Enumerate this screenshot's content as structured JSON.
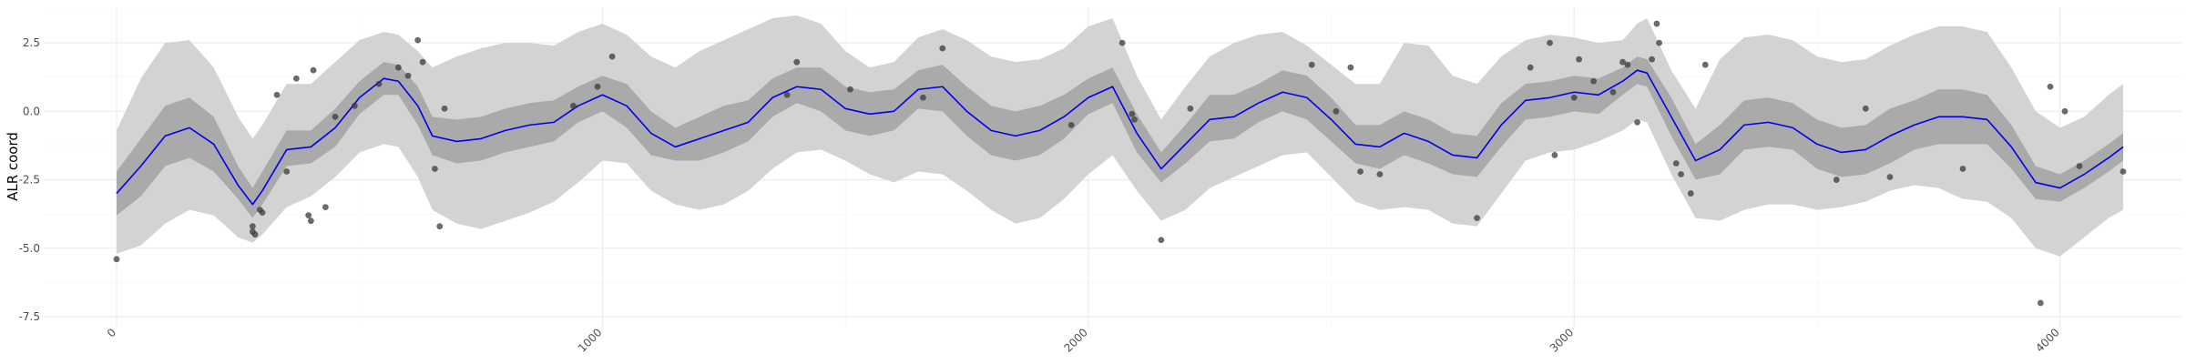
{
  "chart_data": {
    "type": "line",
    "title": "",
    "xlabel": "",
    "ylabel": "ALR coord",
    "xlim": [
      -150,
      4250
    ],
    "ylim": [
      -7.9,
      3.8
    ],
    "x_ticks": [
      0,
      1000,
      2000,
      3000,
      4000
    ],
    "x_tick_labels": [
      "0",
      "1000",
      "2000",
      "3000",
      "4000"
    ],
    "y_ticks": [
      -7.5,
      -5.0,
      -2.5,
      0.0,
      2.5
    ],
    "y_tick_labels": [
      "-7.5",
      "-5.0",
      "-2.5",
      "0.0",
      "2.5"
    ],
    "grid": true,
    "colors": {
      "mean_line": "#0000ee",
      "inner_band": "#aaaaaa",
      "outer_band": "#d3d3d3",
      "points": "#3a3a3a"
    },
    "series": [
      {
        "type": "line",
        "x": [
          0,
          50,
          100,
          150,
          200,
          250,
          280,
          300,
          350,
          400,
          450,
          500,
          550,
          580,
          620,
          650,
          700,
          750,
          800,
          850,
          900,
          950,
          1000,
          1050,
          1100,
          1150,
          1200,
          1250,
          1300,
          1350,
          1400,
          1450,
          1500,
          1550,
          1600,
          1650,
          1700,
          1750,
          1800,
          1850,
          1900,
          1950,
          2000,
          2050,
          2100,
          2150,
          2200,
          2250,
          2300,
          2350,
          2400,
          2450,
          2500,
          2550,
          2600,
          2650,
          2700,
          2750,
          2800,
          2850,
          2900,
          2950,
          3000,
          3050,
          3100,
          3130,
          3150,
          3200,
          3250,
          3300,
          3350,
          3400,
          3450,
          3500,
          3550,
          3600,
          3650,
          3700,
          3750,
          3800,
          3850,
          3900,
          3950,
          4000,
          4050,
          4100,
          4130
        ],
        "y": [
          -3.0,
          -2.0,
          -0.9,
          -0.6,
          -1.2,
          -2.7,
          -3.4,
          -2.9,
          -1.4,
          -1.3,
          -0.6,
          0.5,
          1.2,
          1.1,
          0.2,
          -0.9,
          -1.1,
          -1.0,
          -0.7,
          -0.5,
          -0.4,
          0.2,
          0.6,
          0.2,
          -0.8,
          -1.3,
          -1.0,
          -0.7,
          -0.4,
          0.5,
          0.9,
          0.8,
          0.1,
          -0.1,
          0.0,
          0.8,
          0.9,
          0.0,
          -0.7,
          -0.9,
          -0.7,
          -0.2,
          0.5,
          0.9,
          -0.8,
          -2.1,
          -1.2,
          -0.3,
          -0.2,
          0.3,
          0.7,
          0.5,
          -0.3,
          -1.2,
          -1.3,
          -0.8,
          -1.1,
          -1.6,
          -1.7,
          -0.5,
          0.4,
          0.5,
          0.7,
          0.6,
          1.1,
          1.5,
          1.4,
          -0.2,
          -1.8,
          -1.4,
          -0.5,
          -0.4,
          -0.6,
          -1.2,
          -1.5,
          -1.4,
          -0.9,
          -0.5,
          -0.2,
          -0.2,
          -0.3,
          -1.3,
          -2.6,
          -2.8,
          -2.3,
          -1.7,
          -1.3
        ]
      },
      {
        "type": "band",
        "name": "inner",
        "x": [
          0,
          50,
          100,
          150,
          200,
          250,
          280,
          300,
          350,
          400,
          450,
          500,
          550,
          580,
          620,
          650,
          700,
          750,
          800,
          850,
          900,
          950,
          1000,
          1050,
          1100,
          1150,
          1200,
          1250,
          1300,
          1350,
          1400,
          1450,
          1500,
          1550,
          1600,
          1650,
          1700,
          1750,
          1800,
          1850,
          1900,
          1950,
          2000,
          2050,
          2100,
          2150,
          2200,
          2250,
          2300,
          2350,
          2400,
          2450,
          2500,
          2550,
          2600,
          2650,
          2700,
          2750,
          2800,
          2850,
          2900,
          2950,
          3000,
          3050,
          3100,
          3130,
          3150,
          3200,
          3250,
          3300,
          3350,
          3400,
          3450,
          3500,
          3550,
          3600,
          3650,
          3700,
          3750,
          3800,
          3850,
          3900,
          3950,
          4000,
          4050,
          4100,
          4130
        ],
        "low": [
          -3.8,
          -3.1,
          -2.0,
          -1.7,
          -2.2,
          -3.2,
          -3.9,
          -3.4,
          -2.0,
          -1.9,
          -1.3,
          -0.1,
          0.6,
          0.6,
          -0.5,
          -1.6,
          -1.9,
          -1.8,
          -1.5,
          -1.3,
          -1.1,
          -0.4,
          0.0,
          -0.6,
          -1.6,
          -1.8,
          -1.8,
          -1.5,
          -1.1,
          -0.2,
          0.3,
          0.0,
          -0.7,
          -0.9,
          -0.7,
          0.1,
          0.0,
          -0.9,
          -1.6,
          -1.8,
          -1.6,
          -1.0,
          -0.1,
          0.3,
          -1.5,
          -2.6,
          -1.9,
          -1.1,
          -1.0,
          -0.4,
          0.0,
          -0.3,
          -1.1,
          -1.9,
          -2.1,
          -1.6,
          -1.9,
          -2.3,
          -2.4,
          -1.3,
          -0.3,
          -0.2,
          0.0,
          -0.1,
          0.6,
          1.0,
          0.9,
          -0.9,
          -2.5,
          -2.3,
          -1.4,
          -1.3,
          -1.4,
          -2.1,
          -2.4,
          -2.3,
          -1.9,
          -1.4,
          -1.2,
          -1.2,
          -1.2,
          -2.1,
          -3.2,
          -3.3,
          -2.8,
          -2.2,
          -1.8
        ],
        "high": [
          -2.2,
          -1.0,
          0.2,
          0.5,
          -0.2,
          -2.0,
          -2.8,
          -2.2,
          -0.7,
          -0.7,
          0.1,
          1.1,
          1.8,
          1.7,
          0.9,
          -0.2,
          -0.3,
          -0.2,
          0.1,
          0.3,
          0.4,
          0.9,
          1.3,
          1.0,
          0.0,
          -0.6,
          -0.2,
          0.2,
          0.4,
          1.2,
          1.6,
          1.6,
          0.9,
          0.7,
          0.8,
          1.5,
          1.7,
          0.9,
          0.2,
          0.0,
          0.2,
          0.6,
          1.2,
          1.6,
          -0.1,
          -1.5,
          -0.5,
          0.6,
          0.6,
          1.0,
          1.5,
          1.3,
          0.5,
          -0.5,
          -0.5,
          0.0,
          -0.3,
          -0.8,
          -0.9,
          0.3,
          1.0,
          1.1,
          1.3,
          1.2,
          1.6,
          2.0,
          1.9,
          0.5,
          -1.2,
          -0.5,
          0.4,
          0.5,
          0.3,
          -0.3,
          -0.6,
          -0.5,
          0.1,
          0.4,
          0.8,
          0.8,
          0.6,
          -0.5,
          -2.0,
          -2.3,
          -1.8,
          -1.2,
          -0.8
        ]
      },
      {
        "type": "band",
        "name": "outer",
        "x": [
          0,
          50,
          100,
          150,
          200,
          250,
          280,
          300,
          350,
          400,
          450,
          500,
          550,
          580,
          620,
          650,
          700,
          750,
          800,
          850,
          900,
          950,
          1000,
          1050,
          1100,
          1150,
          1200,
          1250,
          1300,
          1350,
          1400,
          1450,
          1500,
          1550,
          1600,
          1650,
          1700,
          1750,
          1800,
          1850,
          1900,
          1950,
          2000,
          2050,
          2100,
          2150,
          2200,
          2250,
          2300,
          2350,
          2400,
          2450,
          2500,
          2550,
          2600,
          2650,
          2700,
          2750,
          2800,
          2850,
          2900,
          2950,
          3000,
          3050,
          3100,
          3130,
          3150,
          3200,
          3250,
          3300,
          3350,
          3400,
          3450,
          3500,
          3550,
          3600,
          3650,
          3700,
          3750,
          3800,
          3850,
          3900,
          3950,
          4000,
          4050,
          4100,
          4130
        ],
        "low": [
          -5.2,
          -4.9,
          -4.1,
          -3.6,
          -3.8,
          -4.6,
          -4.8,
          -4.5,
          -3.5,
          -3.1,
          -2.4,
          -1.5,
          -1.2,
          -1.3,
          -2.4,
          -3.6,
          -4.1,
          -4.3,
          -4.0,
          -3.7,
          -3.3,
          -2.6,
          -1.8,
          -1.9,
          -2.9,
          -3.4,
          -3.6,
          -3.4,
          -2.9,
          -2.1,
          -1.5,
          -1.4,
          -1.8,
          -2.3,
          -2.6,
          -2.2,
          -2.3,
          -2.9,
          -3.6,
          -4.1,
          -3.9,
          -3.2,
          -2.3,
          -1.6,
          -2.9,
          -4.0,
          -3.6,
          -2.8,
          -2.4,
          -2.0,
          -1.6,
          -1.5,
          -2.4,
          -3.3,
          -3.6,
          -3.5,
          -3.6,
          -4.1,
          -4.2,
          -3.0,
          -1.8,
          -1.5,
          -1.4,
          -1.1,
          -0.7,
          -0.3,
          -0.4,
          -2.3,
          -3.9,
          -4.0,
          -3.6,
          -3.4,
          -3.4,
          -3.6,
          -3.5,
          -3.3,
          -2.9,
          -2.7,
          -2.8,
          -3.2,
          -3.3,
          -3.9,
          -5.0,
          -5.3,
          -4.6,
          -3.9,
          -3.6
        ],
        "high": [
          -0.7,
          1.2,
          2.5,
          2.6,
          1.6,
          -0.2,
          -1.0,
          -0.5,
          1.0,
          1.0,
          1.8,
          2.6,
          2.9,
          2.8,
          2.2,
          1.6,
          2.0,
          2.3,
          2.5,
          2.5,
          2.4,
          2.9,
          3.2,
          2.8,
          2.0,
          1.6,
          2.2,
          2.6,
          3.0,
          3.4,
          3.5,
          3.2,
          2.2,
          1.6,
          1.8,
          2.7,
          3.0,
          2.6,
          2.0,
          1.8,
          1.9,
          2.3,
          3.1,
          3.4,
          1.3,
          -0.3,
          0.9,
          2.0,
          2.5,
          2.8,
          2.9,
          2.4,
          1.7,
          1.0,
          1.0,
          2.5,
          2.4,
          1.3,
          1.0,
          2.0,
          2.6,
          2.8,
          2.7,
          2.5,
          2.6,
          3.2,
          3.4,
          1.5,
          0.1,
          1.9,
          2.7,
          2.8,
          2.6,
          2.0,
          1.8,
          1.9,
          2.4,
          2.8,
          3.1,
          3.1,
          2.9,
          1.6,
          0.0,
          -0.6,
          -0.2,
          0.6,
          1.0
        ]
      },
      {
        "type": "scatter",
        "x": [
          0,
          280,
          280,
          285,
          295,
          300,
          330,
          350,
          370,
          395,
          400,
          405,
          430,
          450,
          490,
          540,
          580,
          600,
          620,
          630,
          655,
          665,
          675,
          940,
          990,
          1020,
          1380,
          1400,
          1510,
          1660,
          1700,
          1965,
          2070,
          2090,
          2095,
          2150,
          2210,
          2460,
          2510,
          2540,
          2560,
          2600,
          2800,
          2910,
          2950,
          2960,
          3000,
          3010,
          3040,
          3080,
          3100,
          3110,
          3130,
          3160,
          3170,
          3175,
          3210,
          3220,
          3240,
          3270,
          3540,
          3600,
          3650,
          3800,
          3960,
          3980,
          4010,
          4040,
          4130
        ],
        "y": [
          -5.4,
          -4.2,
          -4.4,
          -4.5,
          -3.6,
          -3.7,
          0.6,
          -2.2,
          1.2,
          -3.8,
          -4.0,
          1.5,
          -3.5,
          -0.2,
          0.2,
          1.0,
          1.6,
          1.3,
          2.6,
          1.8,
          -2.1,
          -4.2,
          0.1,
          0.2,
          0.9,
          2.0,
          0.6,
          1.8,
          0.8,
          0.5,
          2.3,
          -0.5,
          2.5,
          -0.1,
          -0.3,
          -4.7,
          0.1,
          1.7,
          0.0,
          1.6,
          -2.2,
          -2.3,
          -3.9,
          1.6,
          2.5,
          -1.6,
          0.5,
          1.9,
          1.1,
          0.7,
          1.8,
          1.7,
          -0.4,
          1.9,
          3.2,
          2.5,
          -1.9,
          -2.3,
          -3.0,
          1.7,
          -2.5,
          0.1,
          -2.4,
          -2.1,
          -7.0,
          0.9,
          0.0,
          -2.0,
          -2.2
        ]
      }
    ]
  }
}
